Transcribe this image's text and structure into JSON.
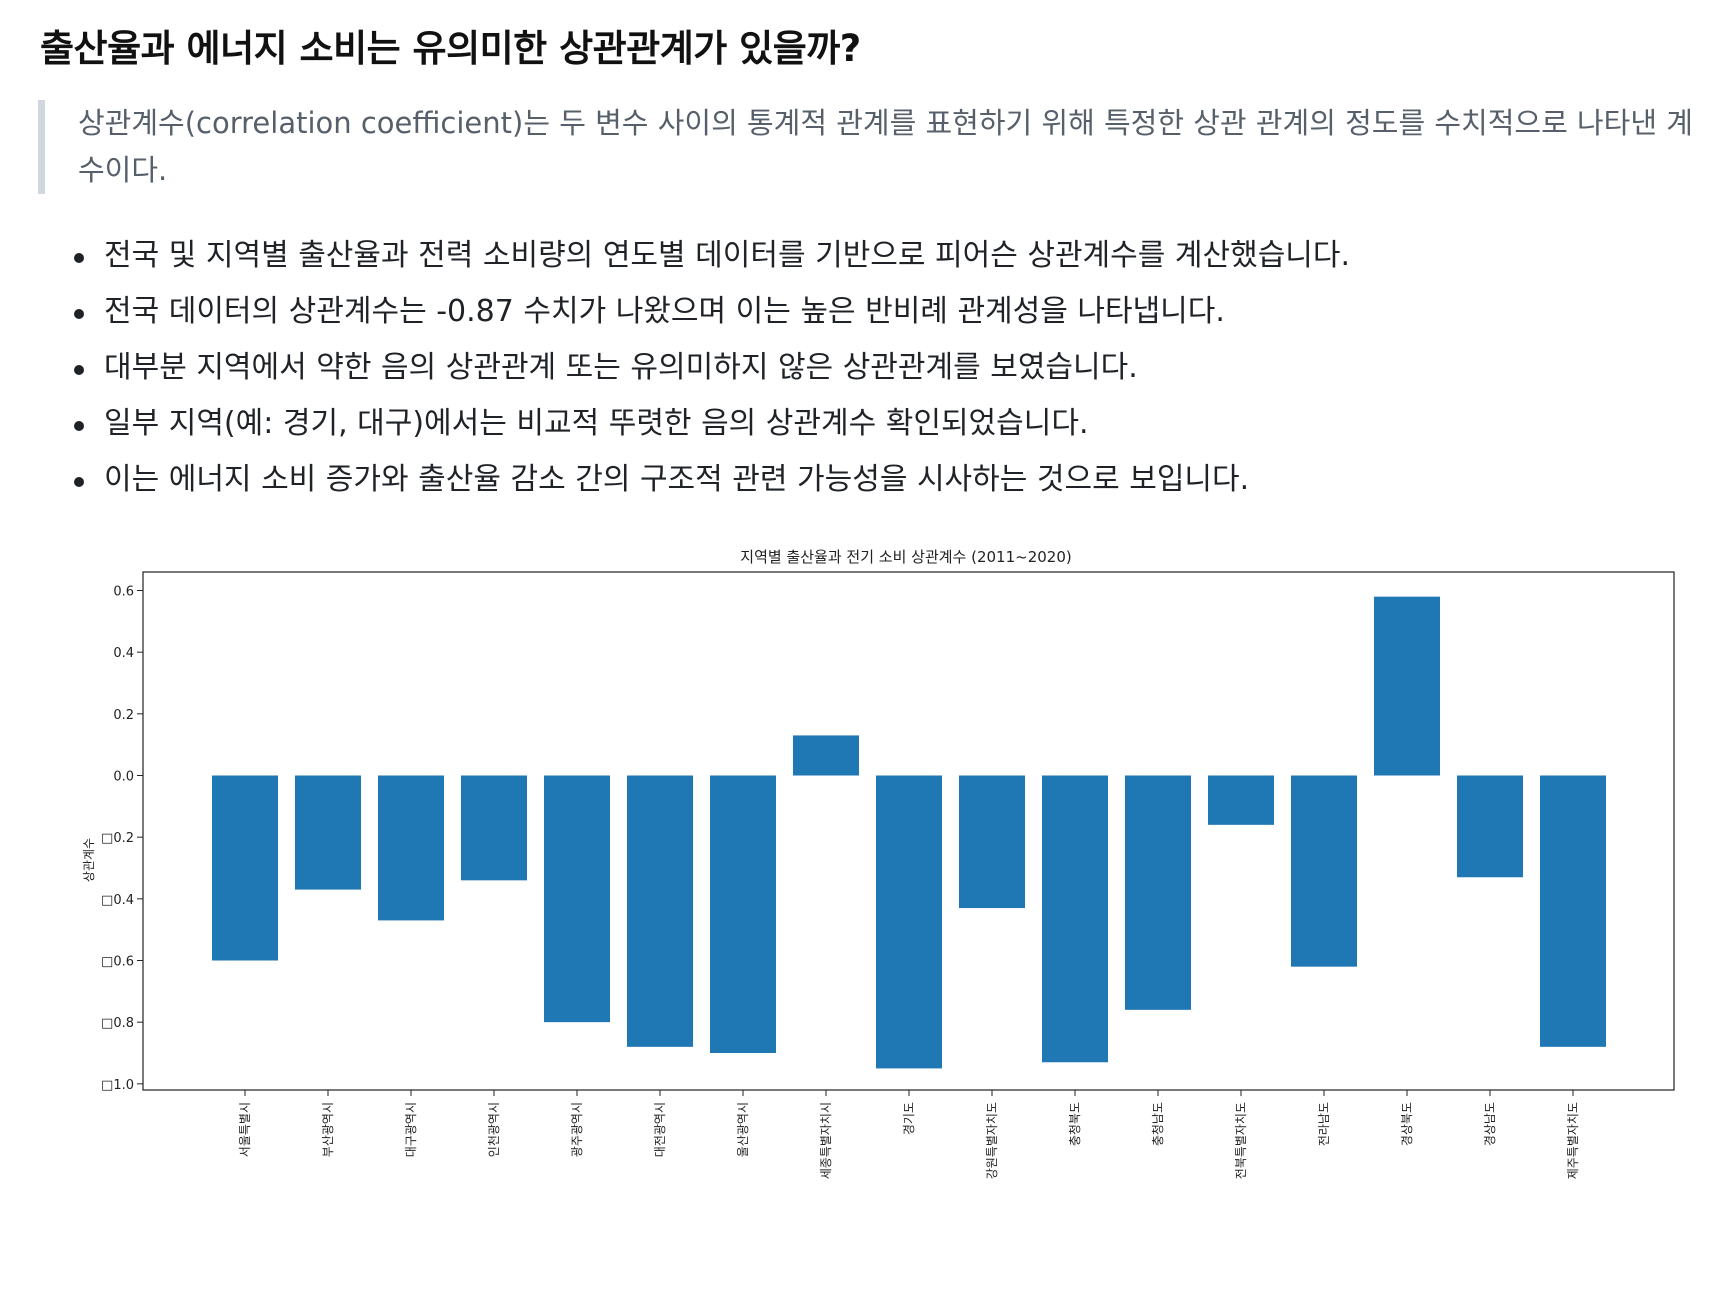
{
  "article": {
    "title": "출산율과 에너지 소비는 유의미한 상관관계가 있을까?",
    "quote": "상관계수(correlation coefficient)는 두 변수 사이의 통계적 관계를 표현하기 위해 특정한 상관 관계의 정도를 수치적으로 나타낸 계수이다.",
    "bullets": [
      "전국 및 지역별 출산율과 전력 소비량의 연도별 데이터를 기반으로 피어슨 상관계수를 계산했습니다.",
      "전국 데이터의 상관계수는 -0.87 수치가 나왔으며 이는 높은 반비례 관계성을 나타냅니다.",
      "대부분 지역에서 약한 음의 상관관계 또는 유의미하지 않은 상관관계를 보였습니다.",
      "일부 지역(예: 경기, 대구)에서는 비교적 뚜렷한 음의 상관계수 확인되었습니다.",
      "이는 에너지 소비 증가와 출산율 감소 간의 구조적 관련 가능성을 시사하는 것으로 보입니다."
    ]
  },
  "chart_data": {
    "type": "bar",
    "title": "지역별 출산율과 전기 소비 상관계수 (2011~2020)",
    "xlabel": "",
    "ylabel": "상관계수",
    "categories": [
      "서울특별시",
      "부산광역시",
      "대구광역시",
      "인천광역시",
      "광주광역시",
      "대전광역시",
      "울산광역시",
      "세종특별자치시",
      "경기도",
      "강원특별자치도",
      "충청북도",
      "충청남도",
      "전북특별자치도",
      "전라남도",
      "경상북도",
      "경상남도",
      "제주특별자치도"
    ],
    "values": [
      -0.6,
      -0.37,
      -0.47,
      -0.34,
      -0.8,
      -0.88,
      -0.9,
      0.13,
      -0.95,
      -0.43,
      -0.93,
      -0.76,
      -0.16,
      -0.62,
      0.58,
      -0.33,
      -0.88
    ],
    "ylim": [
      -1.02,
      0.66
    ],
    "yticks": [
      0.6,
      0.4,
      0.2,
      0.0,
      -0.2,
      -0.4,
      -0.6,
      -0.8,
      -1.0
    ],
    "ytick_labels": [
      "0.6",
      "0.4",
      "0.2",
      "0.0",
      "□0.2",
      "□0.4",
      "□0.6",
      "□0.8",
      "□1.0"
    ],
    "bar_color": "#1f77b4",
    "grid": false,
    "legend": "none"
  }
}
